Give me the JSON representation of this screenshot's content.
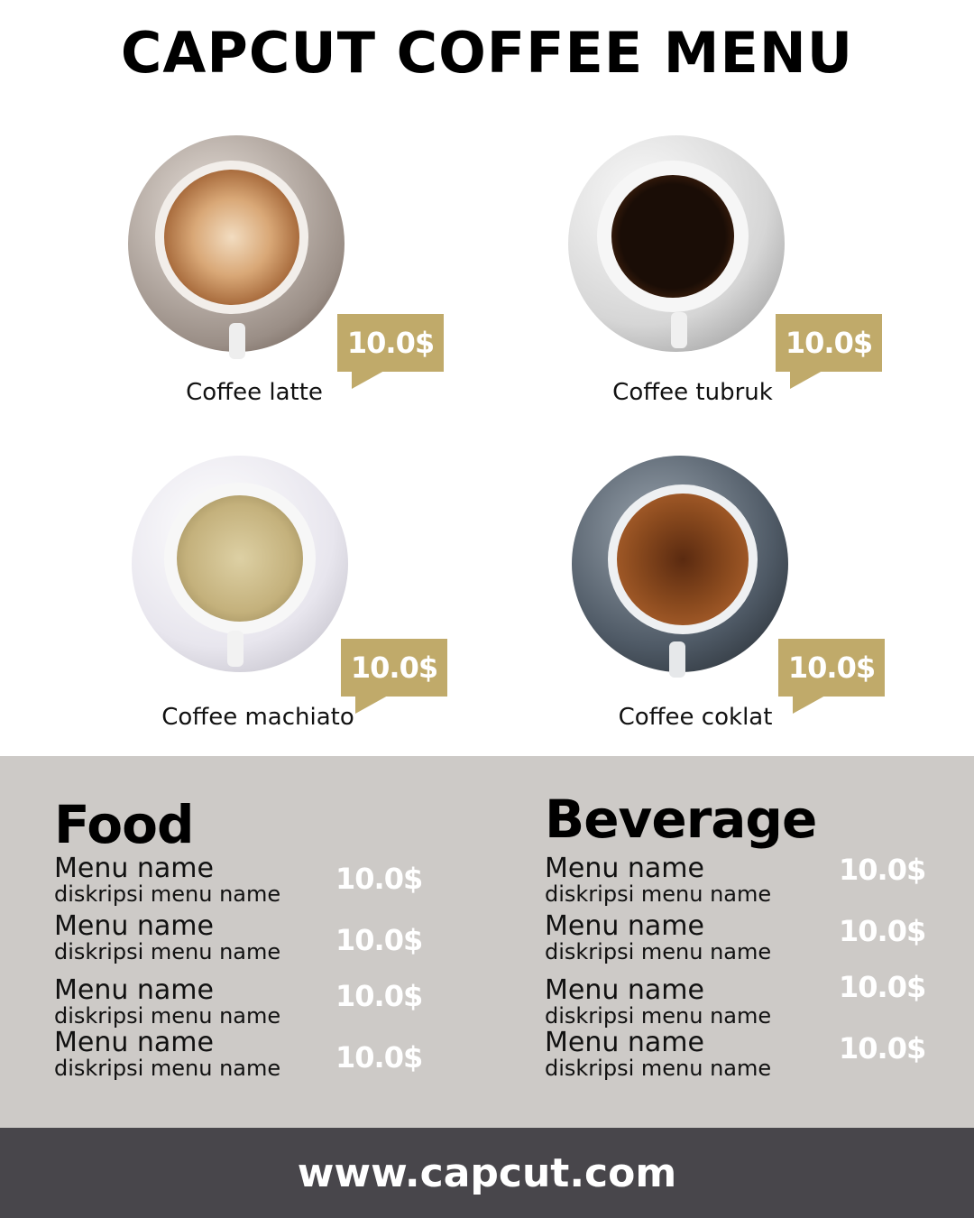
{
  "title": "CAPCUT COFFEE MENU",
  "colors": {
    "tag": "#c0aa6a",
    "band": "#cdcac7",
    "footer": "#48464b"
  },
  "coffees": [
    {
      "name": "Coffee latte",
      "price": "10.0$"
    },
    {
      "name": "Coffee tubruk",
      "price": "10.0$"
    },
    {
      "name": "Coffee machiato",
      "price": "10.0$"
    },
    {
      "name": "Coffee coklat",
      "price": "10.0$"
    }
  ],
  "food": {
    "title": "Food",
    "items": [
      {
        "name": "Menu name",
        "desc": "diskripsi menu name",
        "price": "10.0$"
      },
      {
        "name": "Menu name",
        "desc": "diskripsi menu name",
        "price": "10.0$"
      },
      {
        "name": "Menu name",
        "desc": "diskripsi menu name",
        "price": "10.0$"
      },
      {
        "name": "Menu name",
        "desc": "diskripsi menu name",
        "price": "10.0$"
      }
    ]
  },
  "beverage": {
    "title": "Beverage",
    "items": [
      {
        "name": "Menu name",
        "desc": "diskripsi menu name",
        "price": "10.0$"
      },
      {
        "name": "Menu name",
        "desc": "diskripsi menu name",
        "price": "10.0$"
      },
      {
        "name": "Menu name",
        "desc": "diskripsi menu name",
        "price": "10.0$"
      },
      {
        "name": "Menu name",
        "desc": "diskripsi menu name",
        "price": "10.0$"
      }
    ]
  },
  "footer": {
    "url": "www.capcut.com"
  }
}
